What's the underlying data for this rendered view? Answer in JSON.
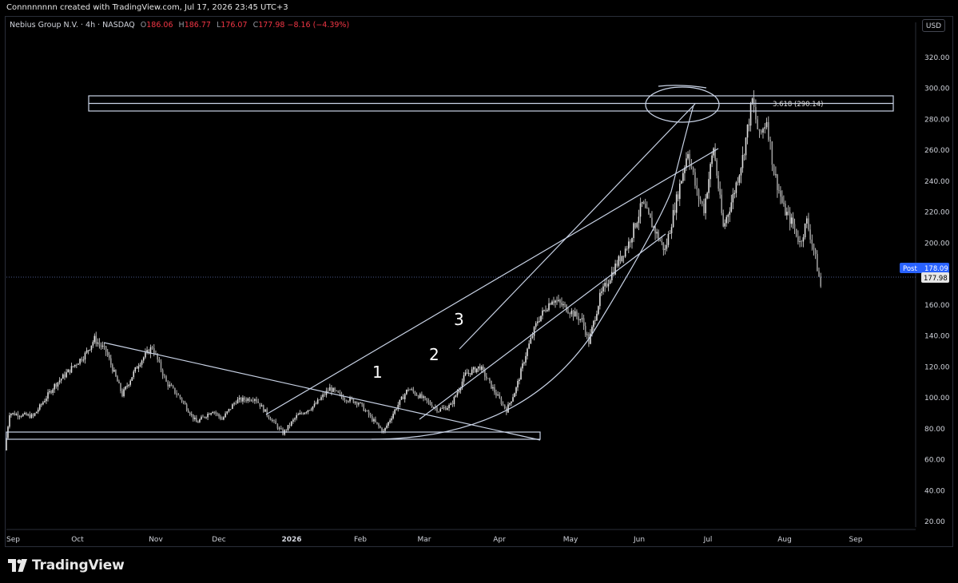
{
  "header": {
    "creator": "Connnnnnnn created with TradingView.com, Jul 17, 2026 23:45 UTC+3"
  },
  "legend": {
    "symbol": "Nebius Group N.V. · 4h · NASDAQ",
    "o_label": "O",
    "o_value": "186.06",
    "h_label": "H",
    "h_value": "186.77",
    "l_label": "L",
    "l_value": "176.07",
    "c_label": "C",
    "c_value": "177.98",
    "change": "−8.16 (−4.39%)"
  },
  "currency_button": "USD",
  "brand": {
    "name": "TradingView",
    "icon": "tradingview-logo-icon"
  },
  "colors": {
    "background": "#000000",
    "candle": "#e0e0e0",
    "drawing": "#c9d3e6",
    "post_badge": "#2962ff",
    "price_badge": "#e6e6e6",
    "price_line": "#4a5a8c"
  },
  "chart_data": {
    "type": "candlestick",
    "title": "Nebius Group N.V. · 4h · NASDAQ",
    "ylim": [
      10,
      340
    ],
    "y_ticks": [
      "20.00",
      "40.00",
      "60.00",
      "80.00",
      "100.00",
      "120.00",
      "140.00",
      "160.00",
      "180.00",
      "200.00",
      "220.00",
      "240.00",
      "260.00",
      "280.00",
      "300.00",
      "320.00"
    ],
    "x_ticks": [
      "Sep",
      "Oct",
      "Nov",
      "Dec",
      "2026",
      "Feb",
      "Mar",
      "Apr",
      "May",
      "Jun",
      "Jul",
      "Aug",
      "Sep"
    ],
    "x_ticks_bold": [
      "2026"
    ],
    "last_close": 177.98,
    "post_label": "Post",
    "post_price": "178.09",
    "close_label": "177.98",
    "annotations": [
      {
        "text": "3.618 (290.14)",
        "type": "fibonacci-level",
        "price": 290.14
      },
      {
        "text": "1",
        "type": "wave-label"
      },
      {
        "text": "2",
        "type": "wave-label"
      },
      {
        "text": "3",
        "type": "wave-label"
      }
    ],
    "price_path_anchors": [
      {
        "date": "Aug 28",
        "price": 66
      },
      {
        "date": "Sep 3",
        "price": 90
      },
      {
        "date": "Sep 13",
        "price": 88
      },
      {
        "date": "Sep 22",
        "price": 108
      },
      {
        "date": "Oct 5",
        "price": 128
      },
      {
        "date": "Oct 9",
        "price": 138
      },
      {
        "date": "Oct 14",
        "price": 130
      },
      {
        "date": "Oct 21",
        "price": 102
      },
      {
        "date": "Oct 28",
        "price": 122
      },
      {
        "date": "Nov 3",
        "price": 133
      },
      {
        "date": "Nov 9",
        "price": 110
      },
      {
        "date": "Nov 15",
        "price": 100
      },
      {
        "date": "Nov 22",
        "price": 84
      },
      {
        "date": "Nov 29",
        "price": 92
      },
      {
        "date": "Dec 3",
        "price": 86
      },
      {
        "date": "Dec 9",
        "price": 98
      },
      {
        "date": "Dec 17",
        "price": 100
      },
      {
        "date": "Dec 23",
        "price": 88
      },
      {
        "date": "Dec 29",
        "price": 77
      },
      {
        "date": "Jan 4",
        "price": 88
      },
      {
        "date": "Jan 12",
        "price": 95
      },
      {
        "date": "Jan 19",
        "price": 106
      },
      {
        "date": "Jan 25",
        "price": 100
      },
      {
        "date": "Feb 1",
        "price": 97
      },
      {
        "date": "Feb 7",
        "price": 86
      },
      {
        "date": "Feb 12",
        "price": 78
      },
      {
        "date": "Feb 17",
        "price": 92
      },
      {
        "date": "Feb 23",
        "price": 106
      },
      {
        "date": "Mar 1",
        "price": 100
      },
      {
        "date": "Mar 8",
        "price": 92
      },
      {
        "date": "Mar 13",
        "price": 95
      },
      {
        "date": "Mar 19",
        "price": 115
      },
      {
        "date": "Mar 25",
        "price": 120
      },
      {
        "date": "Mar 31",
        "price": 104
      },
      {
        "date": "Apr 5",
        "price": 92
      },
      {
        "date": "Apr 9",
        "price": 106
      },
      {
        "date": "Apr 13",
        "price": 128
      },
      {
        "date": "Apr 18",
        "price": 150
      },
      {
        "date": "Apr 24",
        "price": 164
      },
      {
        "date": "Apr 30",
        "price": 158
      },
      {
        "date": "May 7",
        "price": 150
      },
      {
        "date": "May 10",
        "price": 136
      },
      {
        "date": "May 15",
        "price": 165
      },
      {
        "date": "May 22",
        "price": 185
      },
      {
        "date": "May 28",
        "price": 200
      },
      {
        "date": "Jun 3",
        "price": 225
      },
      {
        "date": "Jun 8",
        "price": 210
      },
      {
        "date": "Jun 13",
        "price": 195
      },
      {
        "date": "Jun 18",
        "price": 228
      },
      {
        "date": "Jun 23",
        "price": 260
      },
      {
        "date": "Jun 27",
        "price": 232
      },
      {
        "date": "Jun 30",
        "price": 222
      },
      {
        "date": "Jul 4",
        "price": 262
      },
      {
        "date": "Jul 8",
        "price": 210
      },
      {
        "date": "Jul 12",
        "price": 230
      },
      {
        "date": "Jul 16",
        "price": 255
      },
      {
        "date": "Jul 20",
        "price": 292
      },
      {
        "date": "Jul 23",
        "price": 268
      },
      {
        "date": "Jul 26",
        "price": 280
      },
      {
        "date": "Jul 29",
        "price": 246
      },
      {
        "date": "Aug 2",
        "price": 222
      },
      {
        "date": "Aug 6",
        "price": 212
      },
      {
        "date": "Aug 9",
        "price": 200
      },
      {
        "date": "Aug 12",
        "price": 214
      },
      {
        "date": "Aug 15",
        "price": 196
      },
      {
        "date": "Aug 18",
        "price": 172
      }
    ]
  }
}
